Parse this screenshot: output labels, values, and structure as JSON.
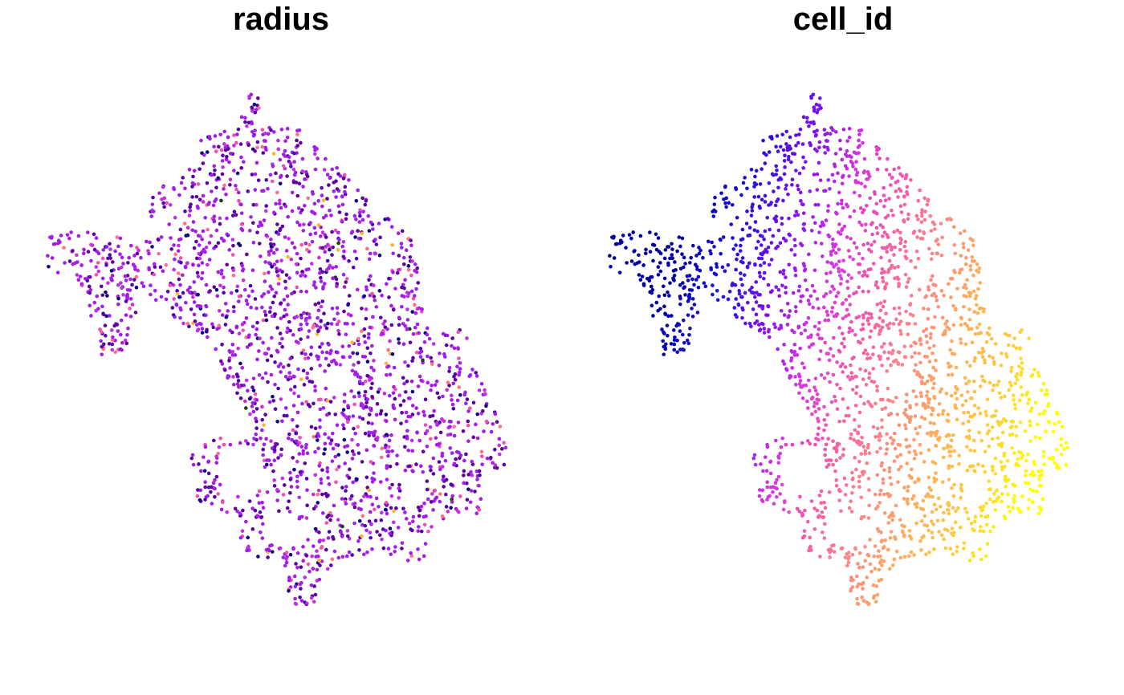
{
  "chart_data": [
    {
      "type": "scatter",
      "title": "radius",
      "xlabel": "",
      "ylabel": "",
      "grid": false,
      "legend": "none",
      "palette": [
        "#0d0887",
        "#5b02a3",
        "#9a179b",
        "#cb4678",
        "#eb7852",
        "#fbb32f",
        "#eff821",
        "#1e3d12"
      ],
      "color_by": "radius"
    },
    {
      "type": "scatter",
      "title": "cell_id",
      "xlabel": "",
      "ylabel": "",
      "grid": false,
      "legend": "none",
      "palette": [
        "#0000a0",
        "#1a10d8",
        "#7a10f0",
        "#d433e0",
        "#f55ca8",
        "#fb8a84",
        "#fdb05a",
        "#fdd03a",
        "#ffff00"
      ],
      "color_by": "cell_id"
    }
  ]
}
